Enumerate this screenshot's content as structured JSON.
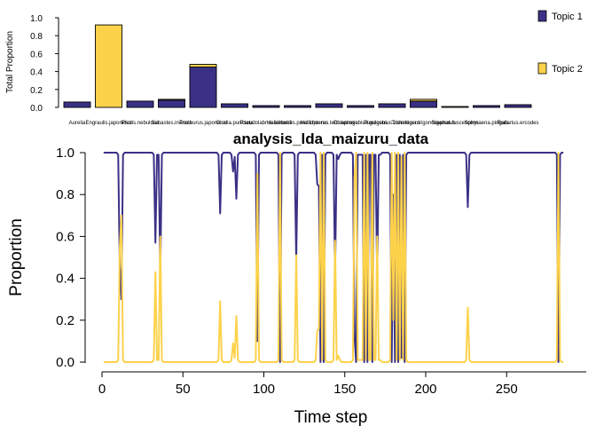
{
  "chart_data": [
    {
      "type": "bar",
      "title": "",
      "ylabel": "Total Proportion",
      "xlabel": "",
      "ylim": [
        0,
        1.0
      ],
      "yticks": [
        0.0,
        0.2,
        0.4,
        0.6,
        0.8,
        1.0
      ],
      "ytick_labels": [
        "0.0",
        "0.2",
        "0.4",
        "0.6",
        "0.8",
        "1.0"
      ],
      "categories": [
        "Aurelia",
        "Engraulis.japonicus",
        "Pholis.nebulosa",
        "Sebastes.inermis",
        "Trachurus.japonicus",
        "Girella.punctata",
        "Pseudolabrus.sieboldi",
        "Halichoeres.poecilopterus",
        "Halichoeres.tenuispinnis",
        "Chaenogobius.gulosus",
        "Pterogobius.zonoleucus",
        "Tridentiger.trigonocephalus",
        "Siganus.fuscescens",
        "Sphyraena.pinguis",
        "Rudarius.ercodes"
      ],
      "series": [
        {
          "name": "Topic 1",
          "color": "#3A3186",
          "values": [
            0.06,
            0.0,
            0.07,
            0.08,
            0.45,
            0.04,
            0.02,
            0.02,
            0.04,
            0.02,
            0.04,
            0.07,
            0.0,
            0.02,
            0.03
          ]
        },
        {
          "name": "Topic 2",
          "color": "#FDD24B",
          "values": [
            0.0,
            0.92,
            0.0,
            0.01,
            0.03,
            0.0,
            0.0,
            0.0,
            0.0,
            0.0,
            0.0,
            0.02,
            0.01,
            0.0,
            0.0
          ]
        }
      ],
      "legend": [
        "Topic 1",
        "Topic 2"
      ]
    },
    {
      "type": "line",
      "title": "analysis_lda_maizuru_data",
      "xlabel": "Time step",
      "ylabel": "Proportion",
      "xlim": [
        1,
        285
      ],
      "ylim": [
        0,
        1.0
      ],
      "xticks": [
        0,
        50,
        100,
        150,
        200,
        250
      ],
      "xtick_labels": [
        "0",
        "50",
        "100",
        "150",
        "200",
        "250"
      ],
      "yticks": [
        0.0,
        0.2,
        0.4,
        0.6,
        0.8,
        1.0
      ],
      "ytick_labels": [
        "0.0",
        "0.2",
        "0.4",
        "0.6",
        "0.8",
        "1.0"
      ],
      "series_names": [
        "Topic 1",
        "Topic 2"
      ],
      "series_colors": [
        "#3A3186",
        "#FDD24B"
      ],
      "topic1_baseline": 1.0,
      "topic1_events": [
        [
          10,
          0.99
        ],
        [
          11,
          0.45
        ],
        [
          12,
          0.3
        ],
        [
          13,
          0.99
        ],
        [
          32,
          0.99
        ],
        [
          33,
          0.57
        ],
        [
          34,
          0.99
        ],
        [
          35,
          0.99
        ],
        [
          36,
          0.4
        ],
        [
          37,
          0.99
        ],
        [
          72,
          0.99
        ],
        [
          73,
          0.71
        ],
        [
          74,
          0.99
        ],
        [
          80,
          0.99
        ],
        [
          81,
          0.91
        ],
        [
          82,
          0.98
        ],
        [
          83,
          0.78
        ],
        [
          84,
          0.99
        ],
        [
          95,
          0.99
        ],
        [
          96,
          0.1
        ],
        [
          97,
          0.99
        ],
        [
          109,
          0.99
        ],
        [
          110,
          0.0
        ],
        [
          111,
          0.99
        ],
        [
          119,
          0.99
        ],
        [
          120,
          0.49
        ],
        [
          121,
          0.99
        ],
        [
          132,
          0.99
        ],
        [
          133,
          0.85
        ],
        [
          134,
          0.84
        ],
        [
          135,
          0.0
        ],
        [
          136,
          0.99
        ],
        [
          137,
          0.0
        ],
        [
          138,
          0.99
        ],
        [
          143,
          0.99
        ],
        [
          144,
          0.42
        ],
        [
          145,
          0.99
        ],
        [
          146,
          0.97
        ],
        [
          147,
          0.99
        ],
        [
          155,
          0.99
        ],
        [
          156,
          0.12
        ],
        [
          157,
          0.0
        ],
        [
          158,
          0.99
        ],
        [
          159,
          0.99
        ],
        [
          160,
          0.99
        ],
        [
          161,
          0.99
        ],
        [
          162,
          0.0
        ],
        [
          163,
          0.99
        ],
        [
          164,
          0.0
        ],
        [
          165,
          0.99
        ],
        [
          166,
          0.99
        ],
        [
          167,
          0.0
        ],
        [
          168,
          0.99
        ],
        [
          169,
          0.99
        ],
        [
          170,
          0.4
        ],
        [
          171,
          0.99
        ],
        [
          172,
          0.99
        ],
        [
          178,
          0.99
        ],
        [
          179,
          0.0
        ],
        [
          180,
          0.8
        ],
        [
          181,
          0.0
        ],
        [
          182,
          0.99
        ],
        [
          183,
          0.0
        ],
        [
          184,
          0.99
        ],
        [
          185,
          0.02
        ],
        [
          186,
          0.99
        ],
        [
          187,
          0.0
        ],
        [
          188,
          0.99
        ],
        [
          225,
          0.99
        ],
        [
          226,
          0.74
        ],
        [
          227,
          0.99
        ],
        [
          281,
          0.99
        ],
        [
          282,
          0.0
        ],
        [
          283,
          0.99
        ]
      ]
    }
  ]
}
